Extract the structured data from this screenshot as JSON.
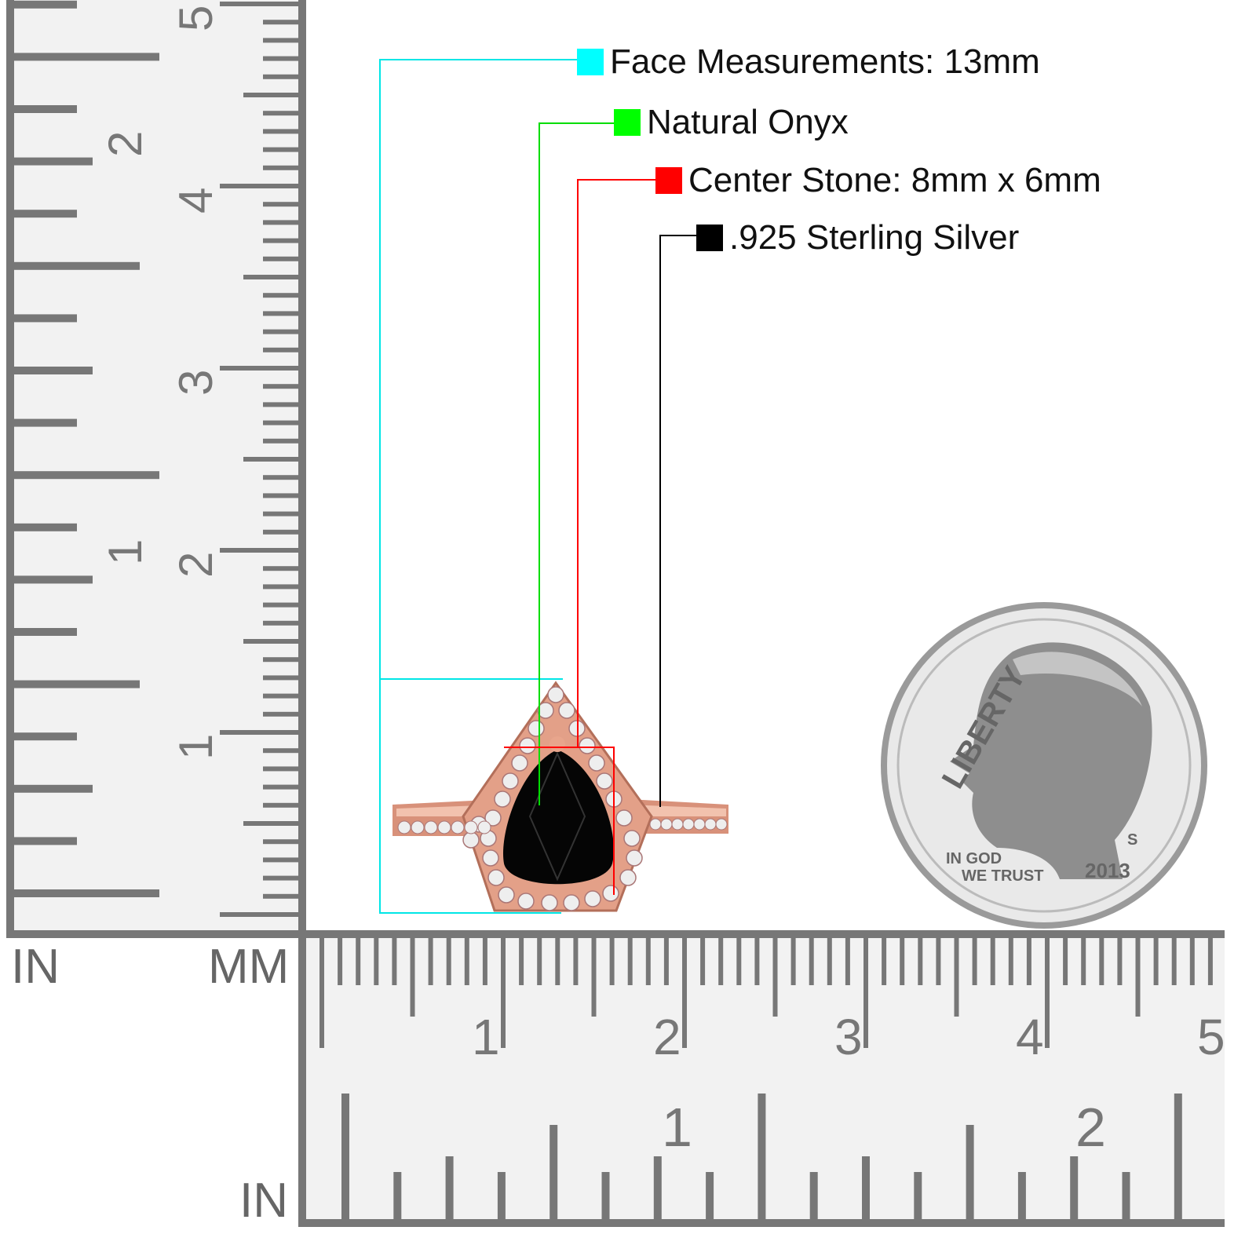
{
  "legend": [
    {
      "label": "Face Measurements: 13mm",
      "color": "#00ffff"
    },
    {
      "label": "Natural Onyx",
      "color": "#00ff00"
    },
    {
      "label": "Center Stone: 8mm x 6mm",
      "color": "#ff0000"
    },
    {
      "label": ".925 Sterling Silver",
      "color": "#000000"
    }
  ],
  "rulers": {
    "vertical_in_label": "IN",
    "vertical_mm_label": "MM",
    "horizontal_in_label": "IN",
    "vertical_cm_numbers": [
      "1",
      "2",
      "3",
      "4",
      "5"
    ],
    "vertical_in_numbers": [
      "1",
      "2"
    ],
    "horizontal_cm_numbers": [
      "1",
      "2",
      "3",
      "4",
      "5"
    ],
    "horizontal_in_numbers": [
      "1",
      "2"
    ],
    "ruler_color": "#777777",
    "ruler_bg": "#f2f2f2"
  },
  "coin": {
    "liberty": "LIBERTY",
    "motto_1": "IN GOD",
    "motto_2": "WE TRUST",
    "year": "2013",
    "mint": "S"
  },
  "ring": {
    "metal_color": "#e8a58c",
    "stone_color": "#050505"
  }
}
